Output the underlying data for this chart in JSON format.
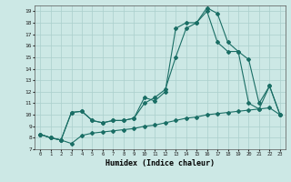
{
  "xlabel": "Humidex (Indice chaleur)",
  "bg_color": "#cce8e5",
  "grid_color": "#aacfcc",
  "line_color": "#1a6e65",
  "xlim": [
    -0.5,
    23.5
  ],
  "ylim": [
    7,
    19.5
  ],
  "xticks": [
    0,
    1,
    2,
    3,
    4,
    5,
    6,
    7,
    8,
    9,
    10,
    11,
    12,
    13,
    14,
    15,
    16,
    17,
    18,
    19,
    20,
    21,
    22,
    23
  ],
  "yticks": [
    7,
    8,
    9,
    10,
    11,
    12,
    13,
    14,
    15,
    16,
    17,
    18,
    19
  ],
  "line1_x": [
    0,
    1,
    2,
    3,
    4,
    5,
    6,
    7,
    8,
    9,
    10,
    11,
    12,
    13,
    14,
    15,
    16,
    17,
    18,
    19,
    20,
    21,
    22,
    23
  ],
  "line1_y": [
    8.3,
    8.0,
    7.8,
    7.5,
    8.2,
    8.4,
    8.5,
    8.6,
    8.7,
    8.8,
    9.0,
    9.1,
    9.3,
    9.5,
    9.7,
    9.8,
    10.0,
    10.1,
    10.2,
    10.3,
    10.4,
    10.5,
    10.6,
    10.0
  ],
  "line2_x": [
    0,
    1,
    2,
    3,
    4,
    5,
    6,
    7,
    8,
    9,
    10,
    11,
    12,
    13,
    14,
    15,
    16,
    17,
    18,
    19,
    20,
    21,
    22,
    23
  ],
  "line2_y": [
    8.3,
    8.0,
    7.8,
    10.2,
    10.3,
    9.5,
    9.3,
    9.5,
    9.5,
    9.7,
    11.0,
    11.5,
    12.2,
    15.0,
    17.5,
    18.0,
    19.3,
    18.8,
    16.3,
    15.5,
    14.8,
    11.0,
    12.5,
    10.0
  ],
  "line3_x": [
    0,
    1,
    2,
    3,
    4,
    5,
    6,
    7,
    8,
    9,
    10,
    11,
    12,
    13,
    14,
    15,
    16,
    17,
    18,
    19,
    20,
    21,
    22,
    23
  ],
  "line3_y": [
    8.3,
    8.0,
    7.8,
    10.2,
    10.3,
    9.5,
    9.3,
    9.5,
    9.5,
    9.7,
    11.5,
    11.2,
    12.0,
    17.5,
    18.0,
    18.0,
    19.0,
    16.3,
    15.5,
    15.5,
    11.0,
    10.5,
    12.5,
    10.0
  ]
}
